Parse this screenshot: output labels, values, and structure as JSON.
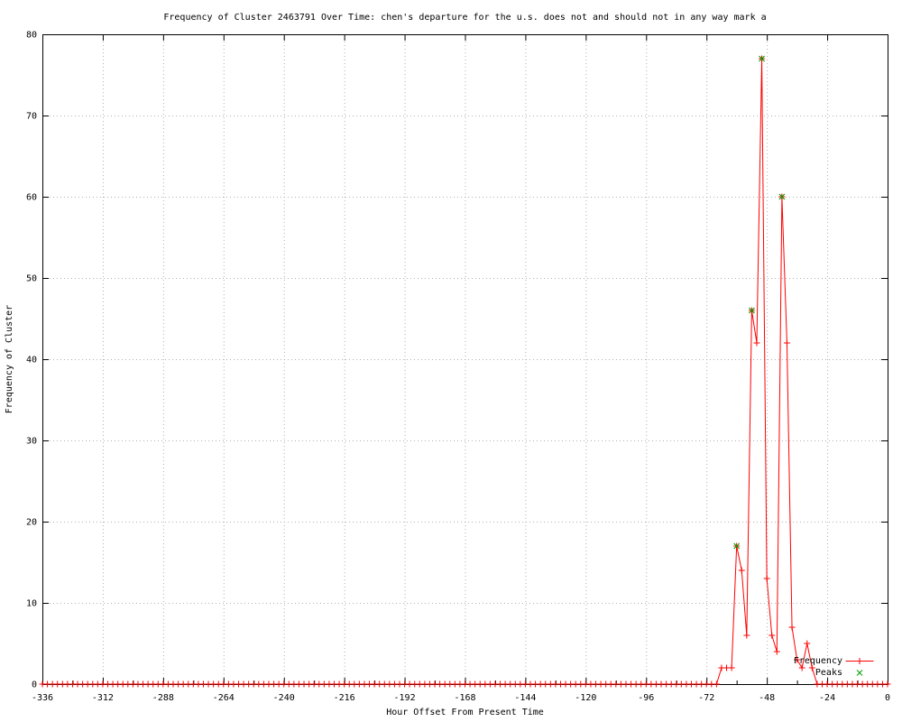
{
  "page": {
    "background": "#ffffff",
    "text_color": "#000000"
  },
  "chart_data": {
    "type": "line",
    "title": "Frequency of Cluster 2463791 Over Time: chen's departure for the u.s. does not and should not in any way mark a",
    "xlabel": "Hour Offset From Present Time",
    "ylabel": "Frequency of Cluster",
    "xlim": [
      -336,
      0
    ],
    "ylim": [
      0,
      80
    ],
    "x_major_tick_step": 24,
    "x_minor_tick_step": 12,
    "y_major_tick_step": 10,
    "x_tick_labels": [
      "-336",
      "-312",
      "-288",
      "-264",
      "-240",
      "-216",
      "-192",
      "-168",
      "-144",
      "-120",
      "-96",
      "-72",
      "-48",
      "-24",
      "0"
    ],
    "y_tick_labels": [
      "0",
      "10",
      "20",
      "30",
      "40",
      "50",
      "60",
      "70",
      "80"
    ],
    "grid": "dotted",
    "grid_color": "#b0b0b0",
    "axis_color": "#000000",
    "legend_position": "bottom-right-inside",
    "sample_interval_hours": 2,
    "fill_value": 0,
    "series": [
      {
        "name": "Frequency",
        "color": "#ff0000",
        "marker": "plus",
        "style": "lines-and-points",
        "nonzero_points": [
          [
            -66,
            2
          ],
          [
            -64,
            2
          ],
          [
            -62,
            2
          ],
          [
            -60,
            17
          ],
          [
            -58,
            14
          ],
          [
            -56,
            6
          ],
          [
            -54,
            46
          ],
          [
            -52,
            42
          ],
          [
            -50,
            77
          ],
          [
            -48,
            13
          ],
          [
            -46,
            6
          ],
          [
            -44,
            4
          ],
          [
            -42,
            60
          ],
          [
            -40,
            42
          ],
          [
            -38,
            7
          ],
          [
            -36,
            3
          ],
          [
            -34,
            2
          ],
          [
            -32,
            5
          ],
          [
            -30,
            2
          ]
        ]
      },
      {
        "name": "Peaks",
        "color": "#00a000",
        "marker": "cross",
        "style": "points",
        "points": [
          [
            -60,
            17
          ],
          [
            -54,
            46
          ],
          [
            -50,
            77
          ],
          [
            -42,
            60
          ]
        ]
      }
    ]
  }
}
